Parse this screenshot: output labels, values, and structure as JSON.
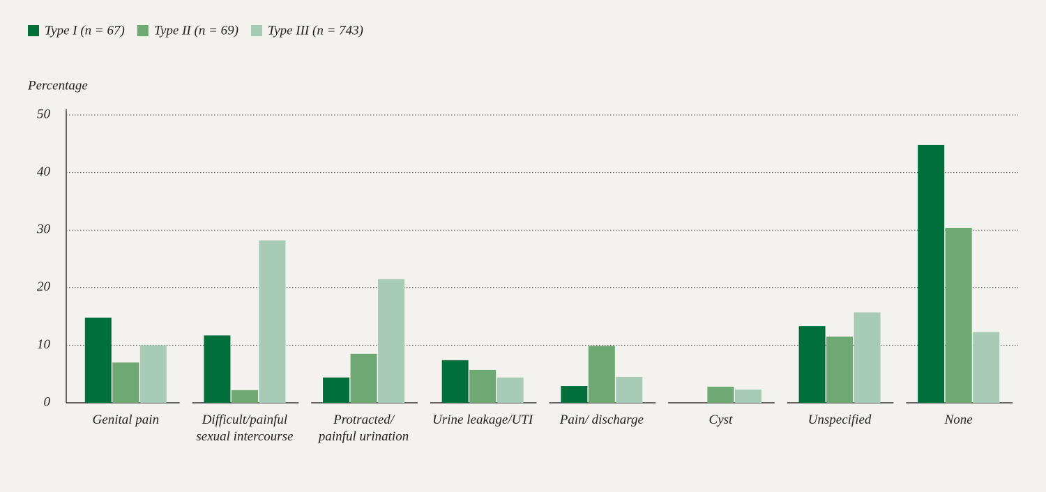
{
  "chart_data": {
    "type": "bar",
    "y_label": "Percentage",
    "categories": [
      "Genital pain",
      "Difficult/painful\nsexual intercourse",
      "Protracted/\npainful urination",
      "Urine leakage/UTI",
      "Pain/ discharge",
      "Cyst",
      "Unspecified",
      "None"
    ],
    "series": [
      {
        "name": "Type I (n = 67)",
        "color": "#006f3c",
        "values": [
          14.8,
          11.7,
          4.4,
          7.4,
          2.9,
          0,
          13.3,
          44.8
        ]
      },
      {
        "name": "Type II (n = 69)",
        "color": "#6ea872",
        "values": [
          7.0,
          2.2,
          8.5,
          5.7,
          9.9,
          2.8,
          11.5,
          30.4
        ]
      },
      {
        "name": "Type III (n = 743)",
        "color": "#a8cbb7",
        "values": [
          10.0,
          28.2,
          21.5,
          4.4,
          4.5,
          2.3,
          15.7,
          12.3
        ]
      }
    ],
    "ylim": [
      0,
      50
    ],
    "yticks": [
      0,
      10,
      20,
      30,
      40,
      50
    ],
    "grid": true,
    "legend": "top-left"
  }
}
